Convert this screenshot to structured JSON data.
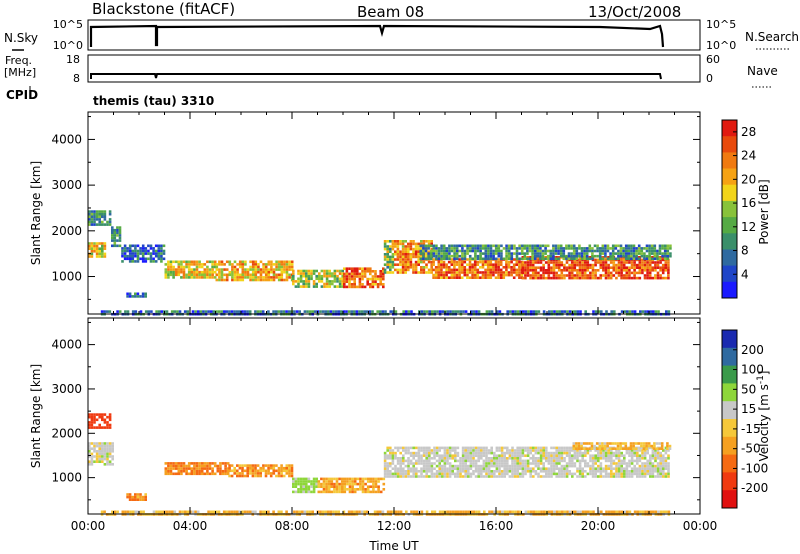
{
  "header": {
    "station": "Blackstone (fitACF)",
    "beam": "Beam 08",
    "date": "13/Oct/2008"
  },
  "top_panels": {
    "nsky_label": "N.Sky",
    "nsky_ticks": [
      "10^5",
      "10^0"
    ],
    "nsearch_label": "N.Search",
    "nsearch_ticks": [
      "10^5",
      "10^0"
    ],
    "freq_label_1": "Freq.",
    "freq_label_2": "[MHz]",
    "freq_ticks": [
      "18",
      "8"
    ],
    "nave_label": "Nave",
    "nave_ticks": [
      "60",
      "0"
    ],
    "cpid_label": "CPID",
    "cpid_value": "themis (tau) 3310"
  },
  "colors": {
    "power": [
      "#1a1aff",
      "#1f45c8",
      "#2f6aa0",
      "#3a8f6a",
      "#55aa44",
      "#88c23a",
      "#f2d41a",
      "#f5a214",
      "#f07a10",
      "#e84a0c",
      "#e01a10"
    ],
    "velocity": [
      "#e01010",
      "#f03a10",
      "#f56a12",
      "#f5a020",
      "#f5c83a",
      "#c8c8c8",
      "#8ed63a",
      "#3a9a4a",
      "#2f6aa0",
      "#1a2ab0"
    ]
  },
  "chart_data": [
    {
      "type": "heatmap",
      "title": "Power",
      "xlabel": "Time UT",
      "ylabel": "Slant Range [km]",
      "xlim": [
        "00:00",
        "24:00"
      ],
      "ylim": [
        180,
        4600
      ],
      "x_ticks": [
        "00:00",
        "04:00",
        "08:00",
        "12:00",
        "16:00",
        "20:00",
        "00:00"
      ],
      "y_ticks": [
        1000,
        2000,
        3000,
        4000
      ],
      "colorbar": {
        "label": "Power [dB]",
        "ticks": [
          4,
          8,
          12,
          16,
          20,
          24,
          28
        ],
        "range": [
          0,
          30
        ]
      },
      "regions": [
        {
          "t_start": 0.0,
          "t_end": 0.7,
          "range_low": 1450,
          "range_high": 1750,
          "value": 18
        },
        {
          "t_start": 0.0,
          "t_end": 0.9,
          "range_low": 2150,
          "range_high": 2450,
          "value": 10
        },
        {
          "t_start": 0.9,
          "t_end": 1.3,
          "range_low": 1700,
          "range_high": 2100,
          "value": 9
        },
        {
          "t_start": 1.3,
          "t_end": 3.0,
          "range_low": 1350,
          "range_high": 1700,
          "value": 6
        },
        {
          "t_start": 3.0,
          "t_end": 5.0,
          "range_low": 1000,
          "range_high": 1350,
          "value": 18
        },
        {
          "t_start": 5.0,
          "t_end": 8.0,
          "range_low": 950,
          "range_high": 1350,
          "value": 20
        },
        {
          "t_start": 8.0,
          "t_end": 10.0,
          "range_low": 800,
          "range_high": 1150,
          "value": 16
        },
        {
          "t_start": 10.0,
          "t_end": 11.6,
          "range_low": 800,
          "range_high": 1200,
          "value": 24
        },
        {
          "t_start": 11.6,
          "t_end": 12.0,
          "range_low": 1100,
          "range_high": 1800,
          "value": 14
        },
        {
          "t_start": 12.0,
          "t_end": 13.5,
          "range_low": 1100,
          "range_high": 1800,
          "value": 22
        },
        {
          "t_start": 13.5,
          "t_end": 17.0,
          "range_low": 950,
          "range_high": 1400,
          "value": 24
        },
        {
          "t_start": 17.0,
          "t_end": 22.8,
          "range_low": 950,
          "range_high": 1450,
          "value": 26
        },
        {
          "t_start": 13.0,
          "t_end": 22.8,
          "range_low": 1400,
          "range_high": 1700,
          "value": 10
        },
        {
          "t_start": 1.5,
          "t_end": 2.3,
          "range_low": 550,
          "range_high": 650,
          "value": 6
        },
        {
          "t_start": 0.5,
          "t_end": 22.8,
          "range_low": 180,
          "range_high": 260,
          "value": 7
        }
      ]
    },
    {
      "type": "heatmap",
      "title": "Velocity",
      "xlabel": "Time UT",
      "ylabel": "Slant Range [km]",
      "xlim": [
        "00:00",
        "24:00"
      ],
      "ylim": [
        180,
        4600
      ],
      "x_ticks": [
        "00:00",
        "04:00",
        "08:00",
        "12:00",
        "16:00",
        "20:00",
        "00:00"
      ],
      "y_ticks": [
        1000,
        2000,
        3000,
        4000
      ],
      "colorbar": {
        "label": "Velocity [m s^-1]",
        "ticks": [
          "200",
          "100",
          "50",
          "15",
          "-15",
          "-50",
          "-100",
          "-200"
        ],
        "range": [
          -250,
          250
        ]
      },
      "regions": [
        {
          "t_start": 0.0,
          "t_end": 0.9,
          "range_low": 2150,
          "range_high": 2450,
          "value": -120
        },
        {
          "t_start": 0.0,
          "t_end": 1.0,
          "range_low": 1300,
          "range_high": 1800,
          "value": 0
        },
        {
          "t_start": 1.5,
          "t_end": 2.3,
          "range_low": 520,
          "range_high": 650,
          "value": -45
        },
        {
          "t_start": 3.0,
          "t_end": 5.5,
          "range_low": 1100,
          "range_high": 1350,
          "value": -55
        },
        {
          "t_start": 5.5,
          "t_end": 8.0,
          "range_low": 1050,
          "range_high": 1300,
          "value": -40
        },
        {
          "t_start": 8.0,
          "t_end": 9.0,
          "range_low": 650,
          "range_high": 1000,
          "value": 30
        },
        {
          "t_start": 9.0,
          "t_end": 11.6,
          "range_low": 700,
          "range_high": 1000,
          "value": -35
        },
        {
          "t_start": 11.6,
          "t_end": 22.8,
          "range_low": 1050,
          "range_high": 1700,
          "value": 0
        },
        {
          "t_start": 19.0,
          "t_end": 22.8,
          "range_low": 1650,
          "range_high": 1800,
          "value": -30
        },
        {
          "t_start": 0.5,
          "t_end": 22.8,
          "range_low": 180,
          "range_high": 260,
          "value": -30
        }
      ]
    }
  ]
}
